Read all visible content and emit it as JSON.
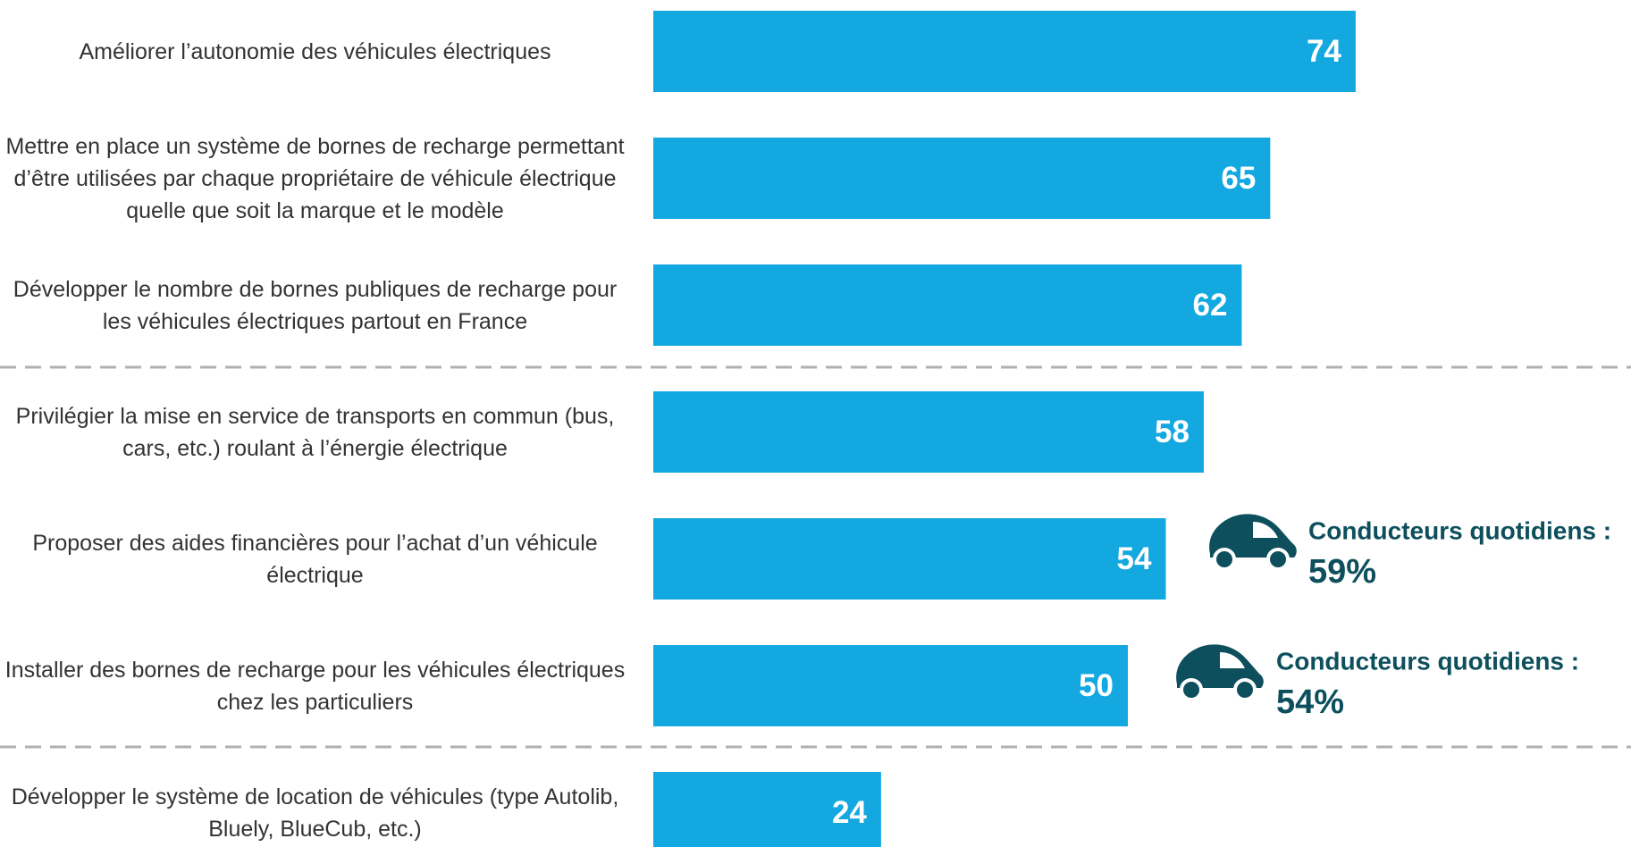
{
  "chart_data": {
    "type": "bar",
    "orientation": "horizontal",
    "categories": [
      "Améliorer l’autonomie des véhicules électriques",
      "Mettre en place un système de bornes de recharge permettant d’être utilisées par chaque propriétaire de véhicule électrique quelle que soit la marque et le modèle",
      "Développer le nombre de bornes publiques de recharge pour les véhicules électriques partout en France",
      "Privilégier la mise en service de transports en commun (bus, cars, etc.) roulant à l’énergie électrique",
      "Proposer des aides financières pour l’achat d’un véhicule électrique",
      "Installer des bornes de recharge pour les véhicules électriques chez les particuliers",
      "Développer le système de location de véhicules (type Autolib, Bluely, BlueCub, etc.)"
    ],
    "values": [
      74,
      65,
      62,
      58,
      54,
      50,
      24
    ],
    "color": "#13a8e0",
    "xlim": [
      0,
      100
    ],
    "annotations": [
      {
        "text": "Conducteurs quotidiens :",
        "value": "59%"
      },
      {
        "text": "Conducteurs quotidiens :",
        "value": "54%"
      }
    ],
    "annotation_color": "#0d4f5c"
  }
}
